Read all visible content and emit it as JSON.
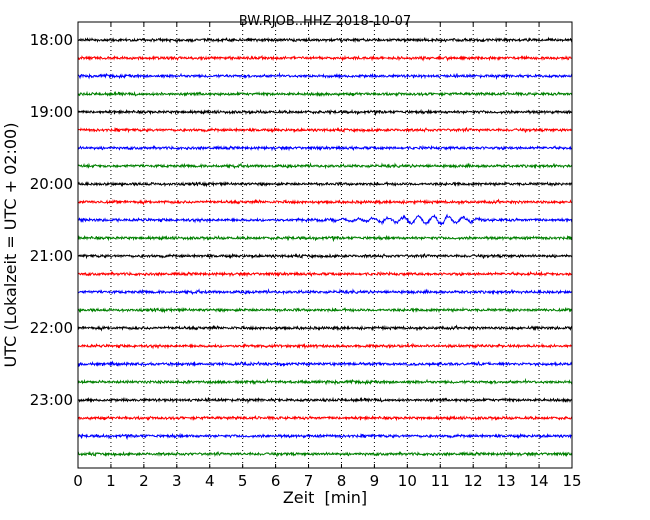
{
  "chart_data": {
    "type": "line",
    "title": "BW.RJOB..HHZ 2018-10-07",
    "xlabel": "Zeit  [min]",
    "ylabel": "UTC (Lokalzeit = UTC + 02:00)",
    "xlim": [
      0,
      15
    ],
    "x_ticks": [
      "0",
      "1",
      "2",
      "3",
      "4",
      "5",
      "6",
      "7",
      "8",
      "9",
      "10",
      "11",
      "12",
      "13",
      "14",
      "15"
    ],
    "y_tick_labels": [
      "18:00",
      "19:00",
      "20:00",
      "21:00",
      "22:00",
      "23:00"
    ],
    "grid": "vertical-dotted",
    "trace_colors": [
      "#000000",
      "#ff0000",
      "#0000ff",
      "#008000"
    ],
    "traces": [
      {
        "start": "18:00",
        "color": "#000000"
      },
      {
        "start": "18:15",
        "color": "#ff0000"
      },
      {
        "start": "18:30",
        "color": "#0000ff"
      },
      {
        "start": "18:45",
        "color": "#008000"
      },
      {
        "start": "19:00",
        "color": "#000000"
      },
      {
        "start": "19:15",
        "color": "#ff0000"
      },
      {
        "start": "19:30",
        "color": "#0000ff"
      },
      {
        "start": "19:45",
        "color": "#008000"
      },
      {
        "start": "20:00",
        "color": "#000000"
      },
      {
        "start": "20:15",
        "color": "#ff0000"
      },
      {
        "start": "20:30",
        "color": "#0000ff",
        "event": {
          "from_min": 6.2,
          "to_min": 12.5,
          "peak_min": 11.2
        }
      },
      {
        "start": "20:45",
        "color": "#008000"
      },
      {
        "start": "21:00",
        "color": "#000000"
      },
      {
        "start": "21:15",
        "color": "#ff0000"
      },
      {
        "start": "21:30",
        "color": "#0000ff"
      },
      {
        "start": "21:45",
        "color": "#008000"
      },
      {
        "start": "22:00",
        "color": "#000000"
      },
      {
        "start": "22:15",
        "color": "#ff0000"
      },
      {
        "start": "22:30",
        "color": "#0000ff"
      },
      {
        "start": "22:45",
        "color": "#008000"
      },
      {
        "start": "23:00",
        "color": "#000000"
      },
      {
        "start": "23:15",
        "color": "#ff0000"
      },
      {
        "start": "23:30",
        "color": "#0000ff"
      },
      {
        "start": "23:45",
        "color": "#008000"
      }
    ]
  }
}
